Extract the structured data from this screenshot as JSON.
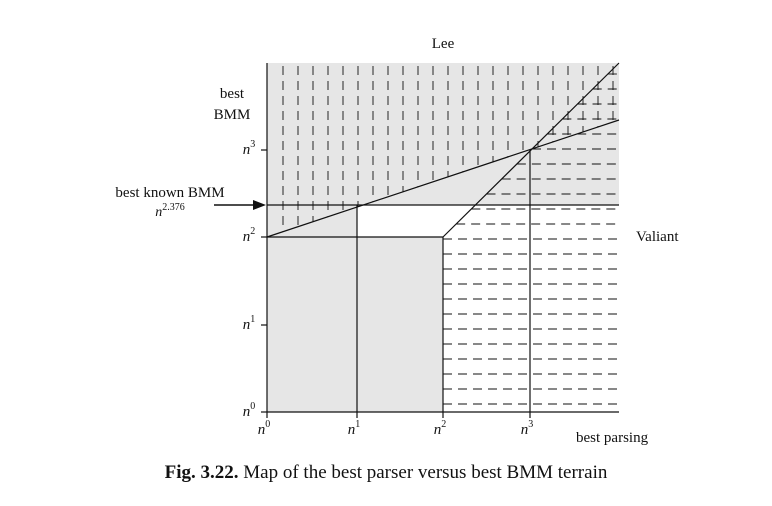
{
  "diagram": {
    "top_label": "Lee",
    "right_label": "Valiant",
    "y_axis_title_line1": "best",
    "y_axis_title_line2": "BMM",
    "x_axis_title": "best parsing",
    "annotation_line1": "best known BMM",
    "annotation_base": "n",
    "annotation_exp": "2.376",
    "x_ticks": [
      {
        "base": "n",
        "exp": "0"
      },
      {
        "base": "n",
        "exp": "1"
      },
      {
        "base": "n",
        "exp": "2"
      },
      {
        "base": "n",
        "exp": "3"
      }
    ],
    "y_ticks": [
      {
        "base": "n",
        "exp": "0"
      },
      {
        "base": "n",
        "exp": "1"
      },
      {
        "base": "n",
        "exp": "2"
      },
      {
        "base": "n",
        "exp": "3"
      }
    ],
    "colors": {
      "shade": "#e6e6e6",
      "line": "#111111"
    }
  },
  "caption": {
    "label": "Fig. 3.22.",
    "text": "Map of the best parser versus best BMM terrain"
  }
}
